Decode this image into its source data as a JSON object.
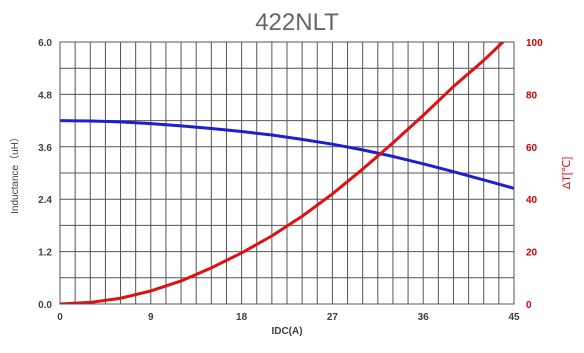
{
  "chart_data": {
    "type": "line",
    "title": "422NLT",
    "xlabel": "IDC(A)",
    "ylabel": "Inductance（uH）",
    "y2label": "ΔT[℃]",
    "xlim": [
      0,
      45
    ],
    "ylim": [
      0,
      6.0
    ],
    "y2lim": [
      0,
      100
    ],
    "x_ticks": [
      "0",
      "9",
      "18",
      "27",
      "36",
      "45"
    ],
    "y_ticks": [
      "0.0",
      "1.2",
      "2.4",
      "3.6",
      "4.8",
      "6.0"
    ],
    "y2_ticks": [
      "0",
      "20",
      "40",
      "60",
      "80",
      "100"
    ],
    "grid": true,
    "series": [
      {
        "axis": "left",
        "color": "#1f1fd0",
        "x": [
          0,
          3,
          6,
          9,
          12,
          15,
          18,
          21,
          24,
          27,
          30,
          33,
          36,
          39,
          42,
          45
        ],
        "y": [
          4.2,
          4.19,
          4.17,
          4.13,
          4.08,
          4.02,
          3.95,
          3.87,
          3.77,
          3.66,
          3.53,
          3.38,
          3.21,
          3.03,
          2.84,
          2.65
        ]
      },
      {
        "axis": "right",
        "color": "#e01010",
        "x": [
          0,
          3,
          6,
          9,
          12,
          15,
          18,
          21,
          24,
          27,
          30,
          33,
          36,
          39,
          42,
          45
        ],
        "y": [
          0,
          0.6,
          2.2,
          5,
          8.8,
          13.8,
          19.5,
          26,
          33.5,
          42,
          51.5,
          61.5,
          72,
          83,
          93,
          104
        ]
      }
    ]
  }
}
